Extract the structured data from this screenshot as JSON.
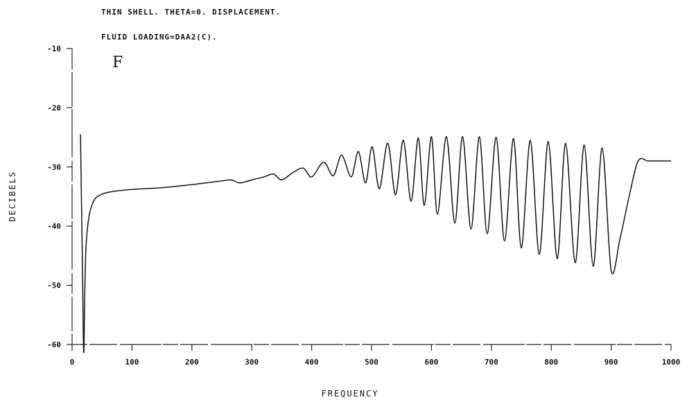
{
  "chart_data": {
    "type": "line",
    "title": "THIN SHELL.  THETA=0.  DISPLACEMENT.",
    "subtitle": "FLUID LOADING=DAA2(C).",
    "panel_label": "F",
    "xlabel": "FREQUENCY",
    "ylabel": "DECIBELS",
    "xlim": [
      0,
      1000
    ],
    "ylim": [
      -60,
      -10
    ],
    "xticks": [
      0,
      100,
      200,
      300,
      400,
      500,
      600,
      700,
      800,
      900,
      1000
    ],
    "xtick_labels": [
      "0",
      "100",
      "200",
      "300",
      "400",
      "500",
      "600",
      "700",
      "800",
      "900",
      "1000"
    ],
    "yticks": [
      -10,
      -20,
      -30,
      -40,
      -50,
      -60
    ],
    "ytick_labels": [
      "-10",
      "-20",
      "-30",
      "-40",
      "-50",
      "-60"
    ],
    "grid": false,
    "line_color": "#111111",
    "series": [
      {
        "x": [
          14,
          17,
          19,
          20,
          21,
          23,
          26,
          30,
          35,
          40,
          50,
          60,
          80,
          100,
          150,
          200,
          240,
          265,
          280,
          300,
          320,
          336,
          350,
          368,
          386,
          400,
          420,
          436,
          450,
          466,
          478,
          490,
          501,
          513,
          527,
          540,
          553,
          566,
          578,
          588,
          600,
          610,
          625,
          639,
          652,
          666,
          680,
          693,
          708,
          722,
          737,
          750,
          765,
          780,
          795,
          810,
          824,
          840,
          855,
          870,
          885,
          900,
          915,
          930,
          945,
          962,
          985,
          1000
        ],
        "y": [
          -24.5,
          -45,
          -60,
          -60,
          -52,
          -44,
          -40,
          -37.5,
          -36,
          -35.2,
          -34.6,
          -34.3,
          -34.0,
          -33.8,
          -33.5,
          -33.0,
          -32.5,
          -32.2,
          -32.7,
          -32.2,
          -31.7,
          -31.2,
          -32.2,
          -31.0,
          -30.2,
          -31.7,
          -29.2,
          -31.5,
          -28.0,
          -31.7,
          -27.4,
          -32.7,
          -26.6,
          -33.7,
          -26.0,
          -34.7,
          -25.5,
          -35.8,
          -25.1,
          -36.5,
          -24.9,
          -38.0,
          -24.9,
          -39.5,
          -24.9,
          -40.5,
          -24.9,
          -41.3,
          -25.0,
          -42.5,
          -25.2,
          -43.7,
          -25.5,
          -44.8,
          -25.7,
          -45.5,
          -26.0,
          -46.2,
          -26.3,
          -46.8,
          -26.8,
          -47.5,
          -42.0,
          -35.0,
          -29.0,
          -29.0,
          -29.0,
          -29.0
        ]
      }
    ]
  }
}
